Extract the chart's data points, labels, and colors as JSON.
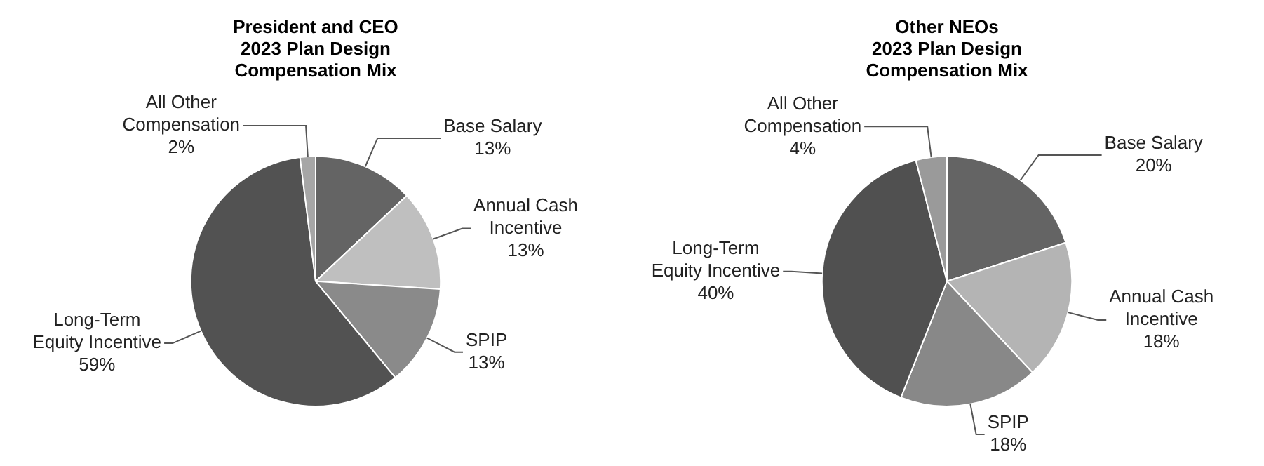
{
  "chart_data": [
    {
      "type": "pie",
      "title": "President and CEO\n2023 Plan Design\nCompensation Mix",
      "categories": [
        "Base Salary",
        "Annual Cash Incentive",
        "SPIP",
        "Long-Term Equity Incentive",
        "All Other Compensation"
      ],
      "values": [
        13,
        13,
        13,
        59,
        2
      ],
      "value_labels": [
        "13%",
        "13%",
        "13%",
        "59%",
        "2%"
      ],
      "colors": [
        "#646464",
        "#bfbfbf",
        "#8a8a8a",
        "#525252",
        "#a6a6a6"
      ],
      "legend": false
    },
    {
      "type": "pie",
      "title": "Other NEOs\n2023 Plan Design\nCompensation Mix",
      "categories": [
        "Base Salary",
        "Annual Cash Incentive",
        "SPIP",
        "Long-Term Equity Incentive",
        "All Other Compensation"
      ],
      "values": [
        20,
        18,
        18,
        40,
        4
      ],
      "value_labels": [
        "20%",
        "18%",
        "18%",
        "40%",
        "4%"
      ],
      "colors": [
        "#646464",
        "#b4b4b4",
        "#888888",
        "#505050",
        "#9a9a9a"
      ],
      "legend": false
    }
  ]
}
